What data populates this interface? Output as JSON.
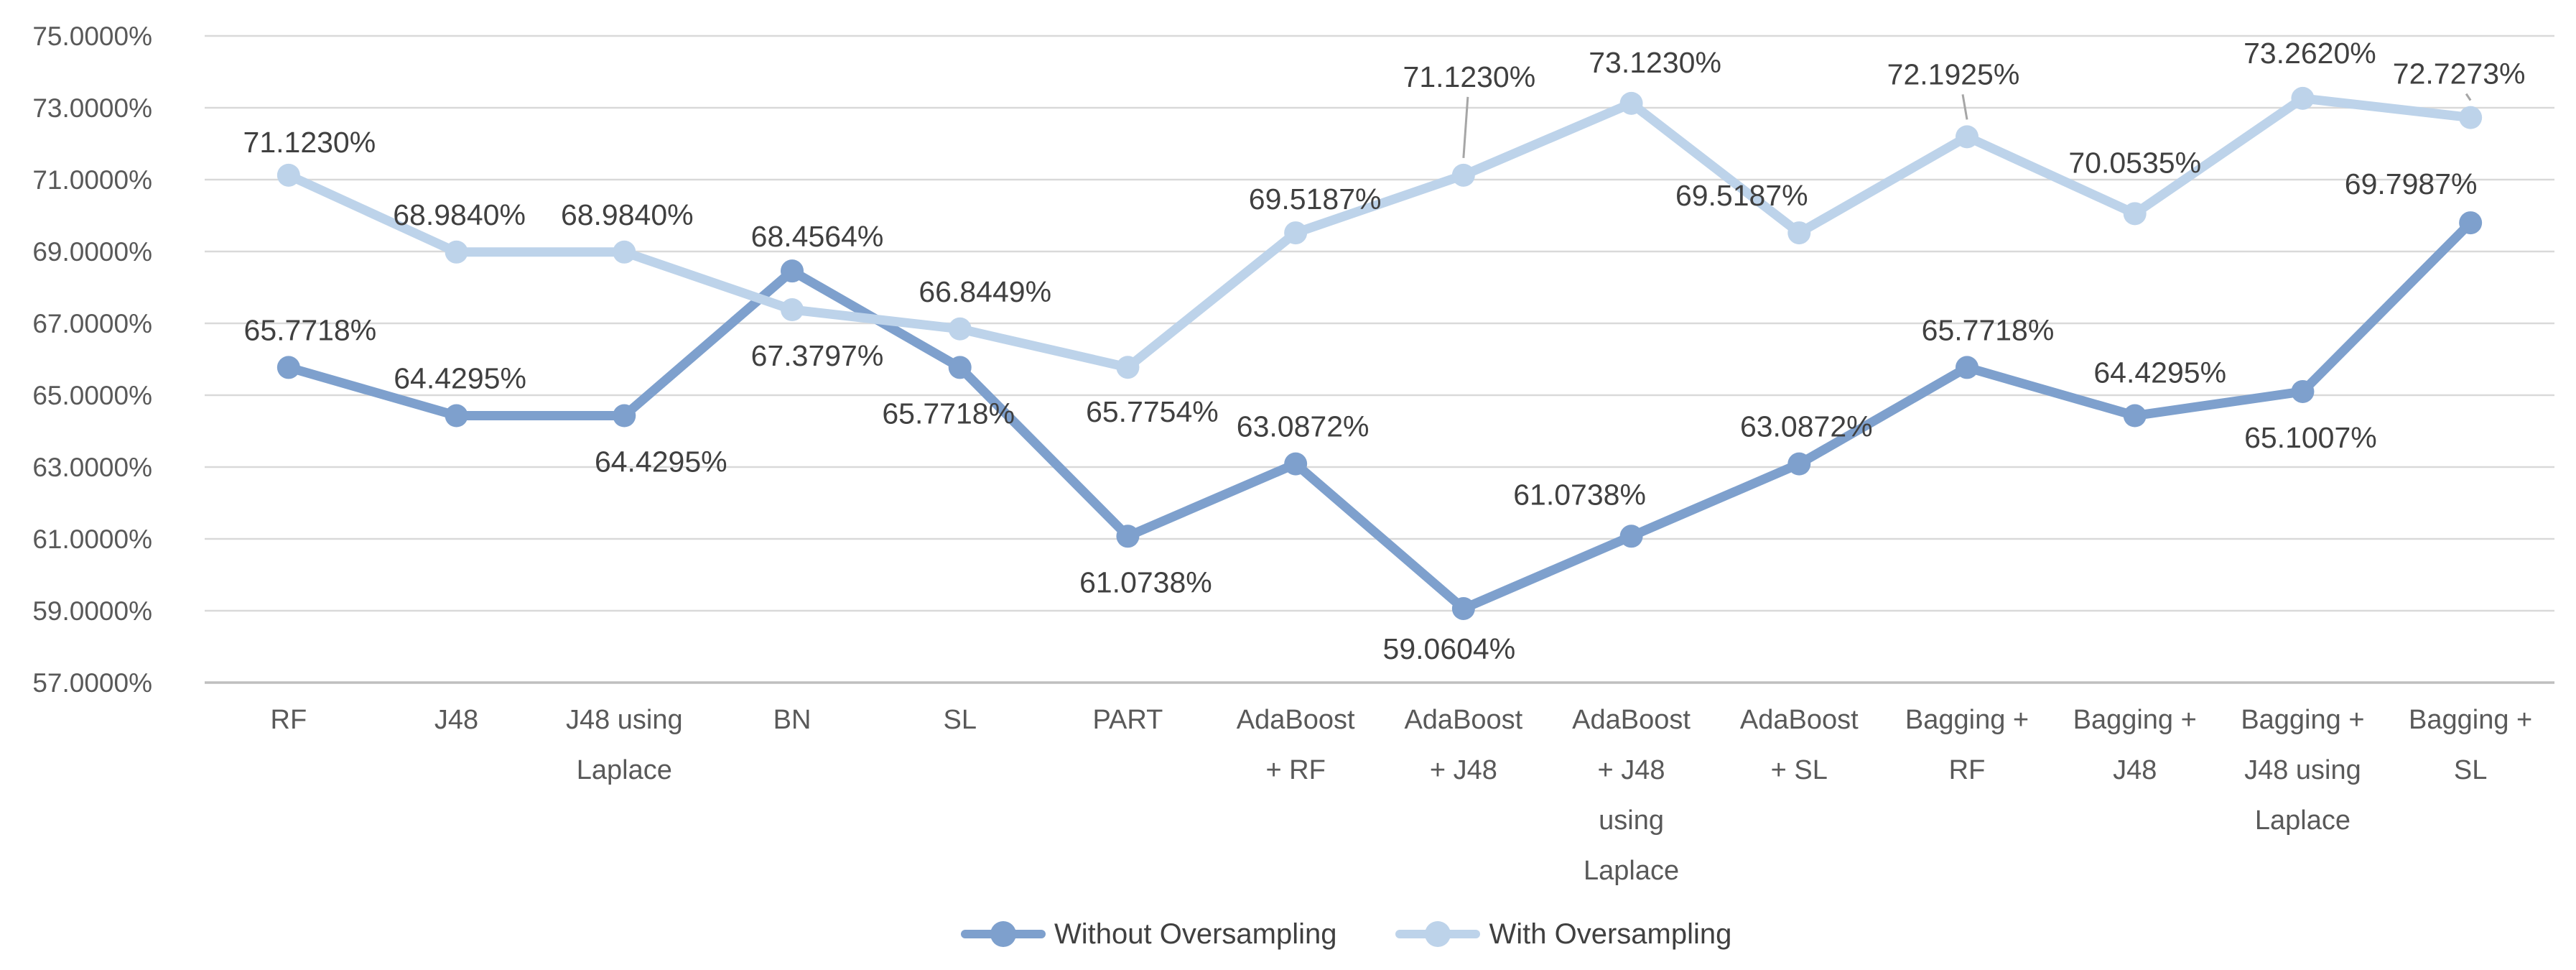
{
  "chart_data": {
    "type": "line",
    "title": "",
    "xlabel": "",
    "ylabel": "",
    "ylim": [
      57,
      75
    ],
    "ytick_step": 2,
    "grid": true,
    "legend_position": "bottom",
    "yticks": [
      "75.0000%",
      "73.0000%",
      "71.0000%",
      "69.0000%",
      "67.0000%",
      "65.0000%",
      "63.0000%",
      "61.0000%",
      "59.0000%",
      "57.0000%"
    ],
    "categories": [
      [
        "RF"
      ],
      [
        "J48"
      ],
      [
        "J48 using",
        "Laplace"
      ],
      [
        "BN"
      ],
      [
        "SL"
      ],
      [
        "PART"
      ],
      [
        "AdaBoost",
        "+ RF"
      ],
      [
        "AdaBoost",
        "+ J48"
      ],
      [
        "AdaBoost",
        "+ J48",
        "using",
        "Laplace"
      ],
      [
        "AdaBoost",
        "+ SL"
      ],
      [
        "Bagging +",
        "RF"
      ],
      [
        "Bagging +",
        "J48"
      ],
      [
        "Bagging +",
        "J48 using",
        "Laplace"
      ],
      [
        "Bagging +",
        "SL"
      ]
    ],
    "series": [
      {
        "name": "Without Oversampling",
        "color": "#7ea0cd",
        "values": [
          65.7718,
          64.4295,
          64.4295,
          68.4564,
          65.7718,
          61.0738,
          63.0872,
          59.0604,
          61.0738,
          63.0872,
          65.7718,
          64.4295,
          65.1007,
          69.7987
        ],
        "labels": [
          "65.7718%",
          "64.4295%",
          "64.4295%",
          "68.4564%",
          "65.7718%",
          "61.0738%",
          "63.0872%",
          "59.0604%",
          "61.0738%",
          "63.0872%",
          "65.7718%",
          "64.4295%",
          "65.1007%",
          "69.7987%"
        ],
        "label_pos": [
          {
            "side": "above",
            "dx": 30
          },
          {
            "side": "above",
            "dx": 5
          },
          {
            "side": "below",
            "dx": 51
          },
          {
            "side": "above",
            "dx": 35,
            "dy": -48
          },
          {
            "side": "below",
            "dx": -16
          },
          {
            "side": "below",
            "dx": 25
          },
          {
            "side": "above",
            "dx": 10
          },
          {
            "side": "below",
            "dx": -20,
            "dy": 56
          },
          {
            "side": "above",
            "dx": -72,
            "dy": -58
          },
          {
            "side": "above",
            "dx": 10
          },
          {
            "side": "above",
            "dx": 29
          },
          {
            "side": "above",
            "dx": 35,
            "dy": -60
          },
          {
            "side": "below",
            "dx": 11
          },
          {
            "side": "above",
            "dx": -83,
            "dy": -54
          }
        ]
      },
      {
        "name": "With Oversampling",
        "color": "#bdd3ea",
        "values": [
          71.123,
          68.984,
          68.984,
          67.3797,
          66.8449,
          65.7754,
          69.5187,
          71.123,
          73.123,
          69.5187,
          72.1925,
          70.0535,
          73.262,
          72.7273
        ],
        "labels": [
          "71.1230%",
          "68.9840%",
          "68.9840%",
          "67.3797%",
          "66.8449%",
          "65.7754%",
          "69.5187%",
          "71.1230%",
          "73.1230%",
          "69.5187%",
          "72.1925%",
          "70.0535%",
          "73.2620%",
          "72.7273%"
        ],
        "label_pos": [
          {
            "side": "above",
            "dx": 29,
            "dy": -46
          },
          {
            "side": "above",
            "dx": 4
          },
          {
            "side": "above",
            "dx": 4
          },
          {
            "side": "below",
            "dx": 35
          },
          {
            "side": "above",
            "dx": 35
          },
          {
            "side": "below",
            "dx": 34,
            "dy": 62
          },
          {
            "side": "above",
            "dx": 27,
            "dy": -47
          },
          {
            "side": "above",
            "dx": 8,
            "dy": -137,
            "leader": true
          },
          {
            "side": "above",
            "dx": 33,
            "dy": -57
          },
          {
            "side": "above",
            "dx": -80
          },
          {
            "side": "above",
            "dx": -19,
            "dy": -87,
            "leader": true
          },
          {
            "side": "above",
            "dx": 0,
            "dy": -71
          },
          {
            "side": "above",
            "dx": 10,
            "dy": -63
          },
          {
            "side": "above",
            "dx": -16,
            "dy": -61,
            "leader": true
          }
        ]
      }
    ],
    "colors": {
      "gridline": "#d9d9d9",
      "axis_line": "#bfbfbf",
      "data_label_text": "#404040",
      "tick_text": "#595959",
      "leader_line": "#a6a6a6",
      "background": "#ffffff"
    }
  }
}
